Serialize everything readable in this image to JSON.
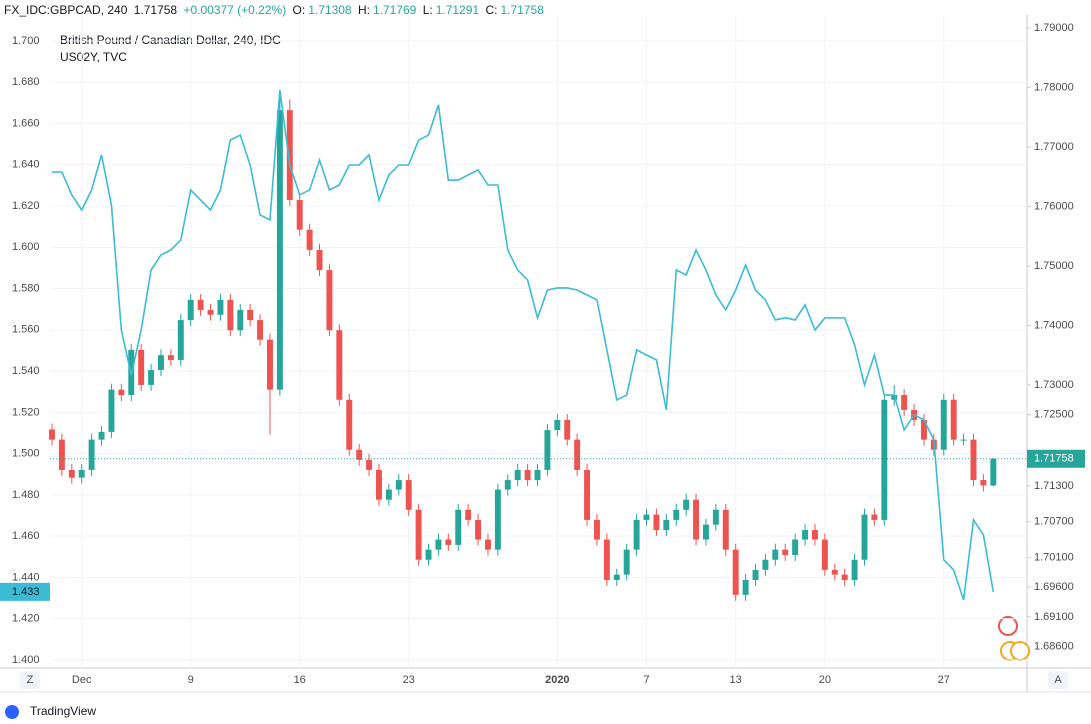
{
  "header": {
    "symbol": "FX_IDC:GBPCAD, 240",
    "last": "1.71758",
    "change": "+0.00377 (+0.22%)",
    "ohlc": [
      {
        "label": "O:",
        "value": "1.71308"
      },
      {
        "label": "H:",
        "value": "1.71769"
      },
      {
        "label": "L:",
        "value": "1.71291"
      },
      {
        "label": "C:",
        "value": "1.71758"
      }
    ]
  },
  "buttons": {
    "left": "Z",
    "right": "A"
  },
  "footer": "TradingView",
  "chart_data": {
    "type": "candlestick",
    "xlim": [
      -0.2,
      98.4
    ],
    "xticks": [
      {
        "value": 3,
        "label": "Dec"
      },
      {
        "value": 14,
        "label": "9"
      },
      {
        "value": 25,
        "label": "16"
      },
      {
        "value": 36,
        "label": "23"
      },
      {
        "value": 51,
        "label": "2020"
      },
      {
        "value": 60,
        "label": "7"
      },
      {
        "value": 69,
        "label": "13"
      },
      {
        "value": 78,
        "label": "20"
      },
      {
        "value": 90,
        "label": "27"
      }
    ],
    "ylim": [
      1.3961,
      1.7126
    ],
    "yticks": [
      {
        "value": 1.7,
        "label": "1.700"
      },
      {
        "value": 1.68,
        "label": "1.680"
      },
      {
        "value": 1.66,
        "label": "1.660"
      },
      {
        "value": 1.64,
        "label": "1.640"
      },
      {
        "value": 1.62,
        "label": "1.620"
      },
      {
        "value": 1.6,
        "label": "1.600"
      },
      {
        "value": 1.58,
        "label": "1.580"
      },
      {
        "value": 1.56,
        "label": "1.560"
      },
      {
        "value": 1.54,
        "label": "1.540"
      },
      {
        "value": 1.52,
        "label": "1.520"
      },
      {
        "value": 1.5,
        "label": "1.500"
      },
      {
        "value": 1.48,
        "label": "1.480"
      },
      {
        "value": 1.46,
        "label": "1.460"
      },
      {
        "value": 1.44,
        "label": "1.440"
      },
      {
        "value": 1.42,
        "label": "1.420"
      },
      {
        "value": 1.4,
        "label": "1.400"
      }
    ],
    "y2lim": [
      1.6824,
      1.7922
    ],
    "y2ticks": [
      {
        "value": 1.79,
        "label": "1.79000"
      },
      {
        "value": 1.78,
        "label": "1.78000"
      },
      {
        "value": 1.77,
        "label": "1.77000"
      },
      {
        "value": 1.76,
        "label": "1.76000"
      },
      {
        "value": 1.75,
        "label": "1.75000"
      },
      {
        "value": 1.74,
        "label": "1.74000"
      },
      {
        "value": 1.73,
        "label": "1.73000"
      },
      {
        "value": 1.725,
        "label": "1.72500"
      },
      {
        "value": 1.713,
        "label": "1.71300"
      },
      {
        "value": 1.707,
        "label": "1.70700"
      },
      {
        "value": 1.701,
        "label": "1.70100"
      },
      {
        "value": 1.696,
        "label": "1.69600"
      },
      {
        "value": 1.691,
        "label": "1.69100"
      },
      {
        "value": 1.686,
        "label": "1.68600"
      }
    ],
    "grid": true,
    "series": [
      {
        "name": "British Pound / Canadian Dollar, 240, IDC",
        "type": "candlestick",
        "axis": "y2",
        "up_color": "#26a69a",
        "down_color": "#ef5350",
        "open": [
          1.7225,
          1.7208,
          1.7157,
          1.7144,
          1.7157,
          1.7208,
          1.7221,
          1.7292,
          1.7283,
          1.7359,
          1.73,
          1.7325,
          1.735,
          1.7342,
          1.7409,
          1.7443,
          1.7426,
          1.7418,
          1.7443,
          1.7392,
          1.7426,
          1.7409,
          1.7376,
          1.7292,
          1.7762,
          1.7611,
          1.7561,
          1.7527,
          1.7493,
          1.7392,
          1.7275,
          1.7191,
          1.7174,
          1.7157,
          1.7107,
          1.7124,
          1.714,
          1.709,
          1.7006,
          1.7023,
          1.704,
          1.7031,
          1.709,
          1.7073,
          1.704,
          1.7023,
          1.7124,
          1.714,
          1.7157,
          1.714,
          1.7157,
          1.7224,
          1.7241,
          1.7208,
          1.7157,
          1.7073,
          1.704,
          1.6972,
          1.6981,
          1.7023,
          1.7073,
          1.7082,
          1.7056,
          1.7073,
          1.709,
          1.7107,
          1.704,
          1.7065,
          1.709,
          1.7023,
          1.6947,
          1.6972,
          1.6989,
          1.7006,
          1.7023,
          1.7014,
          1.704,
          1.7056,
          1.704,
          1.6989,
          1.6981,
          1.6972,
          1.7006,
          1.7082,
          1.7073,
          1.7275,
          1.7283,
          1.7258,
          1.7241,
          1.7208,
          1.7191,
          1.7275,
          1.7208,
          1.7208,
          1.714,
          1.71308
        ],
        "high": [
          1.7235,
          1.7218,
          1.7167,
          1.7167,
          1.7218,
          1.7231,
          1.7302,
          1.7302,
          1.7369,
          1.7369,
          1.7335,
          1.736,
          1.736,
          1.7419,
          1.7453,
          1.7453,
          1.7436,
          1.7453,
          1.7453,
          1.7436,
          1.7436,
          1.7419,
          1.7386,
          1.779,
          1.778,
          1.7621,
          1.7571,
          1.7537,
          1.7503,
          1.7402,
          1.7285,
          1.7201,
          1.7184,
          1.7167,
          1.7134,
          1.715,
          1.715,
          1.71,
          1.7033,
          1.705,
          1.705,
          1.71,
          1.71,
          1.7083,
          1.705,
          1.7134,
          1.715,
          1.7167,
          1.7167,
          1.7167,
          1.7234,
          1.7251,
          1.7251,
          1.7218,
          1.7167,
          1.7083,
          1.705,
          1.6991,
          1.7033,
          1.7083,
          1.7092,
          1.7092,
          1.7083,
          1.71,
          1.7117,
          1.7117,
          1.7075,
          1.71,
          1.71,
          1.7033,
          1.6982,
          1.6999,
          1.7016,
          1.7033,
          1.7033,
          1.705,
          1.7066,
          1.7066,
          1.705,
          1.6999,
          1.6991,
          1.7016,
          1.7092,
          1.7092,
          1.7285,
          1.73,
          1.7293,
          1.7268,
          1.7251,
          1.7218,
          1.7285,
          1.7285,
          1.7218,
          1.7218,
          1.715,
          1.71769
        ],
        "low": [
          1.7198,
          1.7147,
          1.7134,
          1.7134,
          1.7147,
          1.7198,
          1.7211,
          1.7273,
          1.7273,
          1.729,
          1.729,
          1.7315,
          1.7332,
          1.7332,
          1.7399,
          1.7416,
          1.7408,
          1.7408,
          1.7382,
          1.7382,
          1.7399,
          1.7366,
          1.7216,
          1.7282,
          1.7601,
          1.7551,
          1.7517,
          1.7483,
          1.7382,
          1.7265,
          1.7181,
          1.7164,
          1.7147,
          1.7097,
          1.7097,
          1.7114,
          1.708,
          1.6996,
          1.6996,
          1.7013,
          1.7021,
          1.7021,
          1.7063,
          1.703,
          1.7013,
          1.7013,
          1.7114,
          1.713,
          1.713,
          1.713,
          1.7147,
          1.7214,
          1.7198,
          1.7147,
          1.7063,
          1.703,
          1.6962,
          1.6962,
          1.6971,
          1.7013,
          1.7063,
          1.7046,
          1.7046,
          1.7063,
          1.708,
          1.703,
          1.703,
          1.7055,
          1.7013,
          1.6937,
          1.6937,
          1.6962,
          1.6979,
          1.6996,
          1.7004,
          1.7004,
          1.703,
          1.703,
          1.6979,
          1.6971,
          1.6962,
          1.6962,
          1.6996,
          1.7063,
          1.7063,
          1.7265,
          1.7248,
          1.7231,
          1.7198,
          1.7181,
          1.7181,
          1.7198,
          1.7198,
          1.713,
          1.7121,
          1.71291
        ],
        "close": [
          1.7208,
          1.7157,
          1.7144,
          1.7157,
          1.7208,
          1.7221,
          1.7292,
          1.7283,
          1.7359,
          1.73,
          1.7325,
          1.735,
          1.7342,
          1.7409,
          1.7443,
          1.7426,
          1.7418,
          1.7443,
          1.7392,
          1.7426,
          1.7409,
          1.7376,
          1.7292,
          1.7762,
          1.7611,
          1.7561,
          1.7527,
          1.7493,
          1.7392,
          1.7275,
          1.7191,
          1.7174,
          1.7157,
          1.7107,
          1.7124,
          1.714,
          1.709,
          1.7006,
          1.7023,
          1.704,
          1.7031,
          1.709,
          1.7073,
          1.704,
          1.7023,
          1.7124,
          1.714,
          1.7157,
          1.714,
          1.7157,
          1.7224,
          1.7241,
          1.7208,
          1.7157,
          1.7073,
          1.704,
          1.6972,
          1.6981,
          1.7023,
          1.7073,
          1.7082,
          1.7056,
          1.7073,
          1.709,
          1.7107,
          1.704,
          1.7065,
          1.709,
          1.7023,
          1.6947,
          1.6972,
          1.6989,
          1.7006,
          1.7023,
          1.7014,
          1.704,
          1.7056,
          1.704,
          1.6989,
          1.6981,
          1.6972,
          1.7006,
          1.7082,
          1.7073,
          1.7275,
          1.7283,
          1.7258,
          1.7241,
          1.7208,
          1.7191,
          1.7275,
          1.7208,
          1.7208,
          1.714,
          1.7131,
          1.71758
        ]
      },
      {
        "name": "US02Y, TVC",
        "type": "line",
        "color": "#3bbcd4",
        "values": [
          1.6365,
          1.6365,
          1.6254,
          1.6181,
          1.6278,
          1.6448,
          1.6205,
          1.5599,
          1.5381,
          1.5599,
          1.589,
          1.5963,
          1.5987,
          1.6036,
          1.6278,
          1.6229,
          1.6181,
          1.6278,
          1.652,
          1.6544,
          1.6399,
          1.6157,
          1.6133,
          1.6763,
          1.6399,
          1.6254,
          1.6278,
          1.6423,
          1.6278,
          1.6302,
          1.6399,
          1.6399,
          1.6448,
          1.6229,
          1.6351,
          1.6399,
          1.6399,
          1.652,
          1.6544,
          1.669,
          1.6326,
          1.6326,
          1.6351,
          1.6375,
          1.6302,
          1.6302,
          1.5987,
          1.589,
          1.5842,
          1.5658,
          1.5793,
          1.5803,
          1.5803,
          1.5793,
          1.5769,
          1.5745,
          1.5503,
          1.526,
          1.5284,
          1.5503,
          1.5478,
          1.5454,
          1.5212,
          1.589,
          1.5866,
          1.5987,
          1.589,
          1.5769,
          1.5696,
          1.5793,
          1.5914,
          1.5793,
          1.5745,
          1.5648,
          1.5658,
          1.5648,
          1.5721,
          1.5599,
          1.5658,
          1.5658,
          1.5658,
          1.5527,
          1.5333,
          1.5478,
          1.5284,
          1.5284,
          1.5115,
          1.5188,
          1.5163,
          1.5066,
          1.4485,
          1.4436,
          1.4291,
          1.4679,
          1.4606,
          1.433
        ]
      }
    ]
  }
}
